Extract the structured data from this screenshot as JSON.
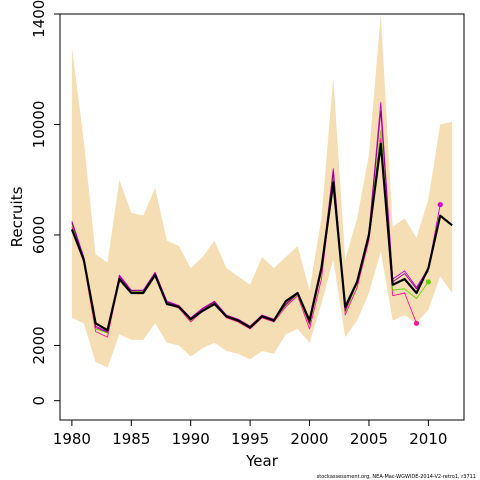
{
  "chart_data": {
    "type": "line",
    "title": "",
    "xlabel": "Year",
    "ylabel": "Recruits",
    "xlim": [
      1979,
      2013
    ],
    "ylim": [
      -700,
      14000
    ],
    "x_ticks": [
      1980,
      1985,
      1990,
      1995,
      2000,
      2005,
      2010
    ],
    "y_ticks": [
      0,
      2000,
      6000,
      10000,
      14000
    ],
    "grid": false,
    "legend": "none",
    "footer": "stockassessment.org, NEA-Mac-WGWIDE-2014-V2-retro1, r3711",
    "colors": {
      "band": "#f5deb3",
      "main": "#000000",
      "retro": [
        "#ff1493",
        "#66cd00",
        "#cd00cd",
        "#8b008b"
      ]
    },
    "years": [
      1980,
      1981,
      1982,
      1983,
      1984,
      1985,
      1986,
      1987,
      1988,
      1989,
      1990,
      1991,
      1992,
      1993,
      1994,
      1995,
      1996,
      1997,
      1998,
      1999,
      2000,
      2001,
      2002,
      2003,
      2004,
      2005,
      2006,
      2007,
      2008,
      2009,
      2010,
      2011,
      2012
    ],
    "upper": [
      12800,
      9400,
      5300,
      5000,
      8000,
      6800,
      6700,
      7700,
      5800,
      5600,
      4800,
      5200,
      5800,
      4800,
      4500,
      4200,
      5200,
      4800,
      5200,
      5600,
      4000,
      6600,
      11700,
      5100,
      6600,
      8900,
      14000,
      6300,
      6600,
      5900,
      7300,
      10000,
      10100
    ],
    "lower": [
      3000,
      2800,
      1400,
      1200,
      2400,
      2200,
      2200,
      2800,
      2100,
      2000,
      1600,
      1900,
      2100,
      1800,
      1700,
      1500,
      1800,
      1700,
      2400,
      2600,
      2100,
      3500,
      5100,
      2300,
      2900,
      3900,
      5400,
      2900,
      3100,
      2800,
      3300,
      4500,
      3900
    ],
    "series": [
      {
        "key": "main",
        "values": [
          6200,
          5100,
          2800,
          2550,
          4400,
          3900,
          3900,
          4550,
          3500,
          3400,
          2950,
          3250,
          3500,
          3050,
          2900,
          2650,
          3050,
          2900,
          3600,
          3900,
          2900,
          4800,
          7900,
          3400,
          4300,
          6000,
          9300,
          4200,
          4400,
          3900,
          4800,
          6700,
          6350
        ]
      },
      {
        "key": "retro-2013",
        "values": [
          6300,
          5000,
          2500,
          2300,
          4400,
          3900,
          3900,
          4550,
          3500,
          3350,
          2850,
          3250,
          3500,
          3000,
          2850,
          2600,
          3000,
          2850,
          3400,
          3800,
          2600,
          4400,
          8000,
          3100,
          4100,
          5800,
          9500,
          3800,
          3900,
          2800
        ]
      },
      {
        "key": "retro-2012",
        "values": [
          6400,
          5100,
          2600,
          2450,
          4500,
          3950,
          3950,
          4600,
          3550,
          3400,
          2900,
          3300,
          3550,
          3050,
          2900,
          2650,
          3050,
          2900,
          3450,
          3850,
          2750,
          4650,
          8200,
          3200,
          4250,
          6000,
          9800,
          4000,
          4050,
          3700,
          4300
        ]
      },
      {
        "key": "retro-2011",
        "values": [
          6500,
          5200,
          2700,
          2500,
          4550,
          4000,
          4000,
          4650,
          3600,
          3450,
          3000,
          3350,
          3600,
          3100,
          2950,
          2700,
          3100,
          2950,
          3500,
          3900,
          2800,
          4750,
          8400,
          3300,
          4350,
          6100,
          10800,
          4400,
          4700,
          4100,
          4800,
          7100
        ]
      },
      {
        "key": "retro-2010",
        "values": [
          6450,
          5150,
          2650,
          2480,
          4500,
          3980,
          3980,
          4620,
          3580,
          3420,
          2980,
          3320,
          3580,
          3080,
          2930,
          2680,
          3080,
          2930,
          3480,
          3880,
          2780,
          4700,
          8300,
          3250,
          4300,
          6050,
          10500,
          4300,
          4600,
          4050,
          4700
        ]
      }
    ],
    "endpoints": [
      {
        "key": "retro-2013",
        "year": 2009,
        "value": 2800
      },
      {
        "key": "retro-2012",
        "year": 2010,
        "value": 4300
      },
      {
        "key": "retro-2011",
        "year": 2011,
        "value": 7100
      }
    ]
  }
}
